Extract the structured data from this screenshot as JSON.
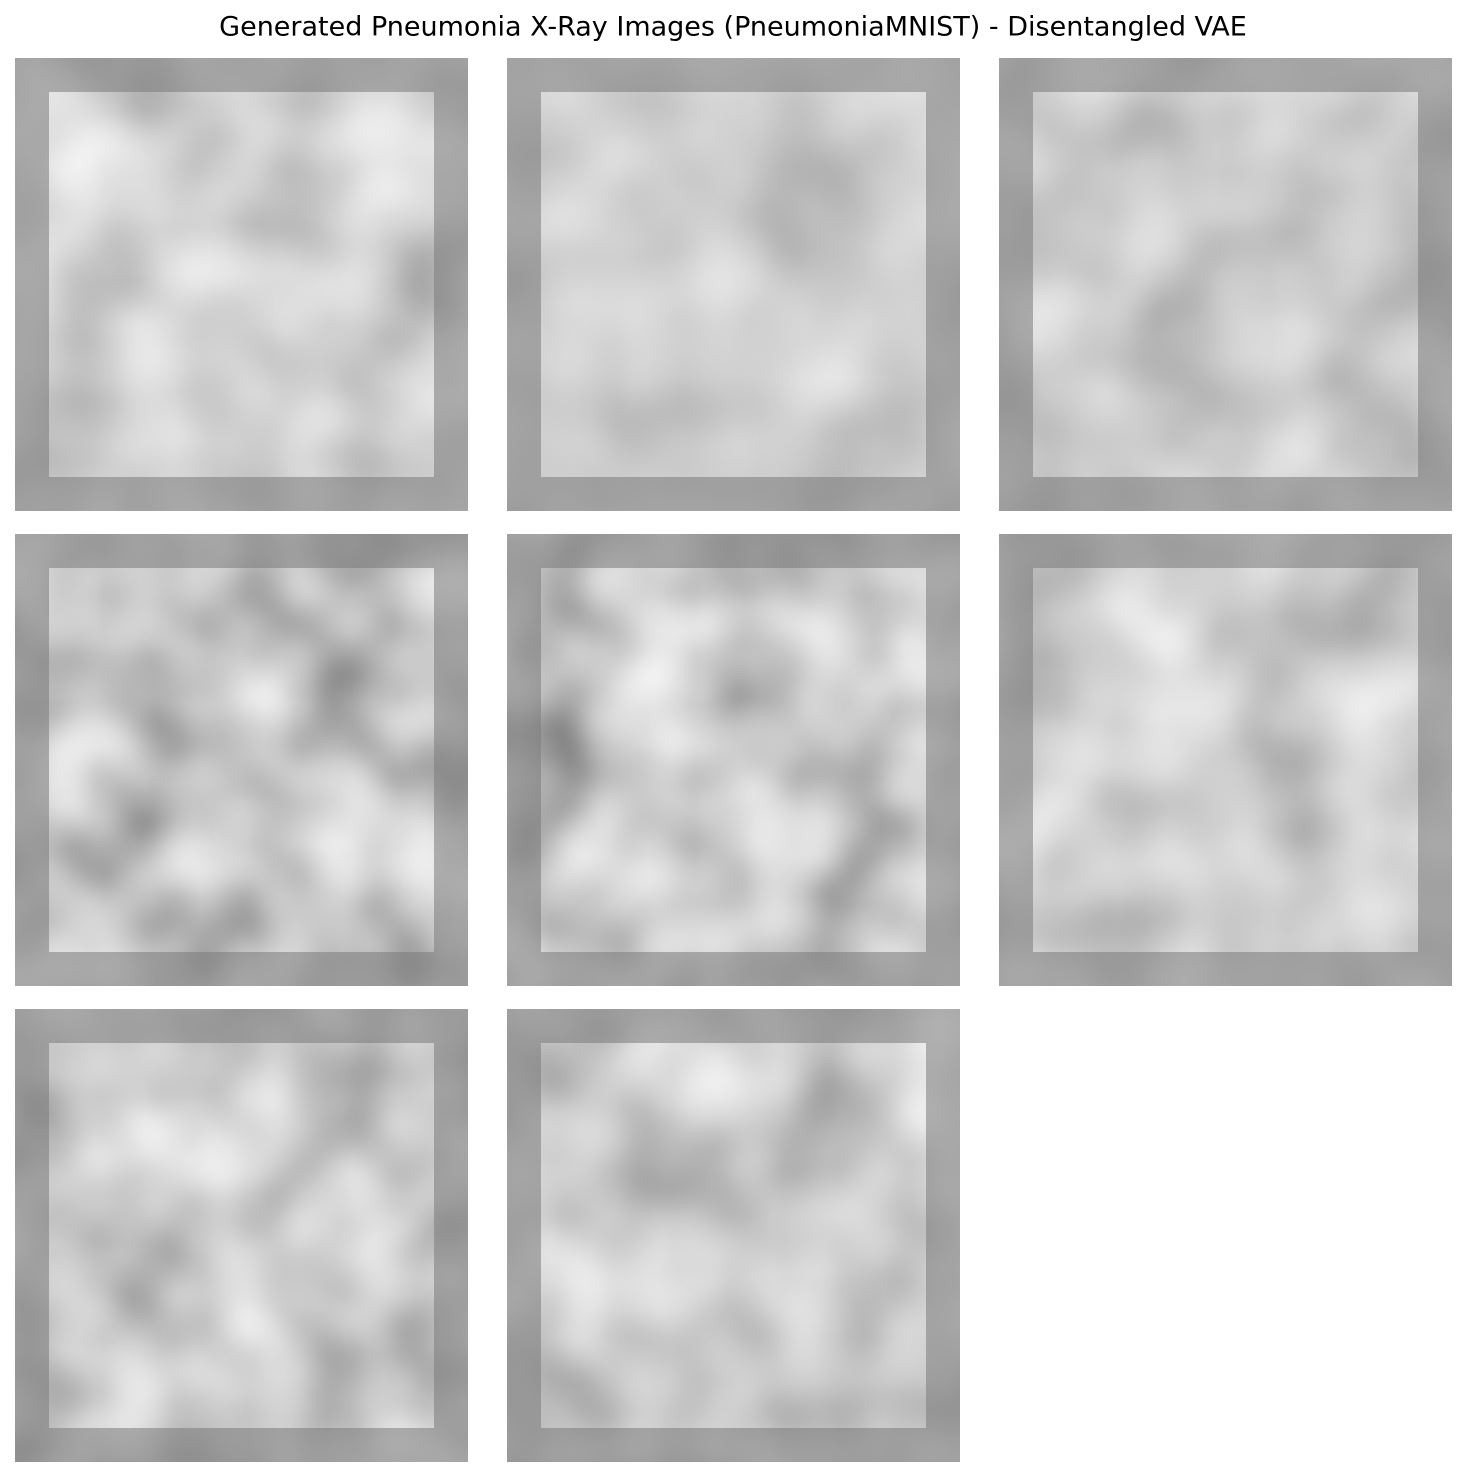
{
  "title": "Generated Pneumonia X-Ray Images (PneumoniaMNIST) - Disentangled VAE"
}
